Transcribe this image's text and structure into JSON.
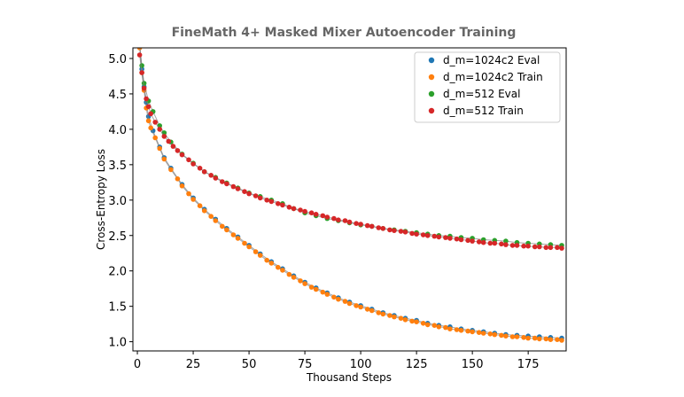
{
  "chart_data": {
    "type": "scatter",
    "title": "FineMath 4+ Masked Mixer Autoencoder Training",
    "xlabel": "Thousand Steps",
    "ylabel": "Cross-Entropy Loss",
    "xlim": [
      -2,
      192
    ],
    "ylim": [
      0.87,
      5.15
    ],
    "xticks": [
      0,
      25,
      50,
      75,
      100,
      125,
      150,
      175
    ],
    "yticks": [
      1.0,
      1.5,
      2.0,
      2.5,
      3.0,
      3.5,
      4.0,
      4.5,
      5.0
    ],
    "xtick_labels": [
      "0",
      "25",
      "50",
      "75",
      "100",
      "125",
      "150",
      "175"
    ],
    "ytick_labels": [
      "1.0",
      "1.5",
      "2.0",
      "2.5",
      "3.0",
      "3.5",
      "4.0",
      "4.5",
      "5.0"
    ],
    "grid": false,
    "legend_position": "top-right",
    "series": [
      {
        "name": "d_m=1024c2 Eval",
        "color": "#1f77b4",
        "points": [
          [
            1,
            5.2
          ],
          [
            2,
            4.85
          ],
          [
            3,
            4.6
          ],
          [
            4,
            4.38
          ],
          [
            5,
            4.18
          ],
          [
            7,
            3.98
          ],
          [
            10,
            3.75
          ],
          [
            12,
            3.6
          ],
          [
            15,
            3.45
          ],
          [
            20,
            3.22
          ],
          [
            25,
            3.03
          ],
          [
            30,
            2.87
          ],
          [
            35,
            2.73
          ],
          [
            40,
            2.6
          ],
          [
            45,
            2.48
          ],
          [
            50,
            2.36
          ],
          [
            55,
            2.24
          ],
          [
            60,
            2.13
          ],
          [
            65,
            2.03
          ],
          [
            70,
            1.93
          ],
          [
            75,
            1.84
          ],
          [
            80,
            1.76
          ],
          [
            85,
            1.69
          ],
          [
            90,
            1.62
          ],
          [
            95,
            1.56
          ],
          [
            100,
            1.51
          ],
          [
            105,
            1.46
          ],
          [
            110,
            1.41
          ],
          [
            115,
            1.37
          ],
          [
            120,
            1.33
          ],
          [
            125,
            1.3
          ],
          [
            130,
            1.26
          ],
          [
            135,
            1.23
          ],
          [
            140,
            1.21
          ],
          [
            145,
            1.18
          ],
          [
            150,
            1.16
          ],
          [
            155,
            1.14
          ],
          [
            160,
            1.12
          ],
          [
            165,
            1.1
          ],
          [
            170,
            1.09
          ],
          [
            175,
            1.08
          ],
          [
            180,
            1.07
          ],
          [
            185,
            1.06
          ],
          [
            190,
            1.05
          ]
        ]
      },
      {
        "name": "d_m=1024c2 Train",
        "color": "#ff7f0e",
        "points": [
          [
            1,
            5.15
          ],
          [
            2,
            4.8
          ],
          [
            3,
            4.55
          ],
          [
            4,
            4.3
          ],
          [
            5,
            4.12
          ],
          [
            6,
            4.02
          ],
          [
            8,
            3.88
          ],
          [
            10,
            3.73
          ],
          [
            12,
            3.58
          ],
          [
            15,
            3.43
          ],
          [
            18,
            3.3
          ],
          [
            20,
            3.2
          ],
          [
            23,
            3.09
          ],
          [
            25,
            3.01
          ],
          [
            28,
            2.92
          ],
          [
            30,
            2.85
          ],
          [
            33,
            2.77
          ],
          [
            35,
            2.71
          ],
          [
            38,
            2.63
          ],
          [
            40,
            2.58
          ],
          [
            43,
            2.51
          ],
          [
            45,
            2.46
          ],
          [
            48,
            2.39
          ],
          [
            50,
            2.34
          ],
          [
            53,
            2.27
          ],
          [
            55,
            2.22
          ],
          [
            58,
            2.15
          ],
          [
            60,
            2.11
          ],
          [
            63,
            2.05
          ],
          [
            65,
            2.01
          ],
          [
            68,
            1.95
          ],
          [
            70,
            1.91
          ],
          [
            73,
            1.86
          ],
          [
            75,
            1.82
          ],
          [
            78,
            1.77
          ],
          [
            80,
            1.74
          ],
          [
            83,
            1.7
          ],
          [
            85,
            1.67
          ],
          [
            88,
            1.63
          ],
          [
            90,
            1.6
          ],
          [
            93,
            1.57
          ],
          [
            95,
            1.54
          ],
          [
            98,
            1.51
          ],
          [
            100,
            1.49
          ],
          [
            103,
            1.46
          ],
          [
            105,
            1.44
          ],
          [
            108,
            1.41
          ],
          [
            110,
            1.39
          ],
          [
            113,
            1.37
          ],
          [
            115,
            1.35
          ],
          [
            118,
            1.33
          ],
          [
            120,
            1.31
          ],
          [
            123,
            1.29
          ],
          [
            125,
            1.28
          ],
          [
            128,
            1.26
          ],
          [
            130,
            1.24
          ],
          [
            133,
            1.23
          ],
          [
            135,
            1.21
          ],
          [
            138,
            1.2
          ],
          [
            140,
            1.18
          ],
          [
            143,
            1.17
          ],
          [
            145,
            1.16
          ],
          [
            148,
            1.15
          ],
          [
            150,
            1.14
          ],
          [
            153,
            1.13
          ],
          [
            155,
            1.12
          ],
          [
            158,
            1.11
          ],
          [
            160,
            1.1
          ],
          [
            163,
            1.09
          ],
          [
            165,
            1.08
          ],
          [
            168,
            1.07
          ],
          [
            170,
            1.07
          ],
          [
            173,
            1.06
          ],
          [
            175,
            1.05
          ],
          [
            178,
            1.05
          ],
          [
            180,
            1.04
          ],
          [
            183,
            1.04
          ],
          [
            185,
            1.03
          ],
          [
            188,
            1.03
          ],
          [
            190,
            1.02
          ]
        ]
      },
      {
        "name": "d_m=512 Eval",
        "color": "#2ca02c",
        "points": [
          [
            1,
            5.2
          ],
          [
            2,
            4.9
          ],
          [
            3,
            4.65
          ],
          [
            5,
            4.4
          ],
          [
            7,
            4.25
          ],
          [
            10,
            4.05
          ],
          [
            12,
            3.95
          ],
          [
            15,
            3.82
          ],
          [
            20,
            3.65
          ],
          [
            25,
            3.52
          ],
          [
            30,
            3.4
          ],
          [
            35,
            3.32
          ],
          [
            40,
            3.24
          ],
          [
            45,
            3.17
          ],
          [
            50,
            3.1
          ],
          [
            55,
            3.05
          ],
          [
            60,
            3.0
          ],
          [
            65,
            2.95
          ],
          [
            70,
            2.88
          ],
          [
            75,
            2.82
          ],
          [
            80,
            2.78
          ],
          [
            85,
            2.74
          ],
          [
            90,
            2.71
          ],
          [
            95,
            2.68
          ],
          [
            100,
            2.65
          ],
          [
            105,
            2.63
          ],
          [
            110,
            2.6
          ],
          [
            115,
            2.58
          ],
          [
            120,
            2.56
          ],
          [
            125,
            2.54
          ],
          [
            130,
            2.52
          ],
          [
            135,
            2.5
          ],
          [
            140,
            2.49
          ],
          [
            145,
            2.47
          ],
          [
            150,
            2.46
          ],
          [
            155,
            2.44
          ],
          [
            160,
            2.43
          ],
          [
            165,
            2.42
          ],
          [
            170,
            2.4
          ],
          [
            175,
            2.39
          ],
          [
            180,
            2.38
          ],
          [
            185,
            2.37
          ],
          [
            190,
            2.36
          ]
        ]
      },
      {
        "name": "d_m=512 Train",
        "color": "#d62728",
        "points": [
          [
            1,
            5.05
          ],
          [
            2,
            4.8
          ],
          [
            3,
            4.58
          ],
          [
            4,
            4.43
          ],
          [
            5,
            4.32
          ],
          [
            6,
            4.22
          ],
          [
            8,
            4.1
          ],
          [
            10,
            4.0
          ],
          [
            12,
            3.9
          ],
          [
            14,
            3.83
          ],
          [
            16,
            3.76
          ],
          [
            18,
            3.7
          ],
          [
            20,
            3.64
          ],
          [
            23,
            3.57
          ],
          [
            25,
            3.51
          ],
          [
            28,
            3.45
          ],
          [
            30,
            3.4
          ],
          [
            33,
            3.35
          ],
          [
            35,
            3.31
          ],
          [
            38,
            3.26
          ],
          [
            40,
            3.23
          ],
          [
            43,
            3.19
          ],
          [
            45,
            3.16
          ],
          [
            48,
            3.12
          ],
          [
            50,
            3.09
          ],
          [
            53,
            3.06
          ],
          [
            55,
            3.03
          ],
          [
            58,
            3.0
          ],
          [
            60,
            2.98
          ],
          [
            63,
            2.95
          ],
          [
            65,
            2.93
          ],
          [
            68,
            2.9
          ],
          [
            70,
            2.88
          ],
          [
            73,
            2.86
          ],
          [
            75,
            2.84
          ],
          [
            78,
            2.82
          ],
          [
            80,
            2.8
          ],
          [
            83,
            2.78
          ],
          [
            85,
            2.76
          ],
          [
            88,
            2.74
          ],
          [
            90,
            2.72
          ],
          [
            93,
            2.71
          ],
          [
            95,
            2.69
          ],
          [
            98,
            2.67
          ],
          [
            100,
            2.66
          ],
          [
            103,
            2.64
          ],
          [
            105,
            2.63
          ],
          [
            108,
            2.61
          ],
          [
            110,
            2.6
          ],
          [
            113,
            2.58
          ],
          [
            115,
            2.57
          ],
          [
            118,
            2.56
          ],
          [
            120,
            2.55
          ],
          [
            123,
            2.53
          ],
          [
            125,
            2.52
          ],
          [
            128,
            2.51
          ],
          [
            130,
            2.5
          ],
          [
            133,
            2.49
          ],
          [
            135,
            2.48
          ],
          [
            138,
            2.47
          ],
          [
            140,
            2.46
          ],
          [
            143,
            2.45
          ],
          [
            145,
            2.44
          ],
          [
            148,
            2.43
          ],
          [
            150,
            2.42
          ],
          [
            153,
            2.41
          ],
          [
            155,
            2.4
          ],
          [
            158,
            2.39
          ],
          [
            160,
            2.39
          ],
          [
            163,
            2.38
          ],
          [
            165,
            2.37
          ],
          [
            168,
            2.36
          ],
          [
            170,
            2.36
          ],
          [
            173,
            2.35
          ],
          [
            175,
            2.35
          ],
          [
            178,
            2.34
          ],
          [
            180,
            2.34
          ],
          [
            183,
            2.33
          ],
          [
            185,
            2.33
          ],
          [
            188,
            2.33
          ],
          [
            190,
            2.32
          ]
        ]
      }
    ]
  }
}
